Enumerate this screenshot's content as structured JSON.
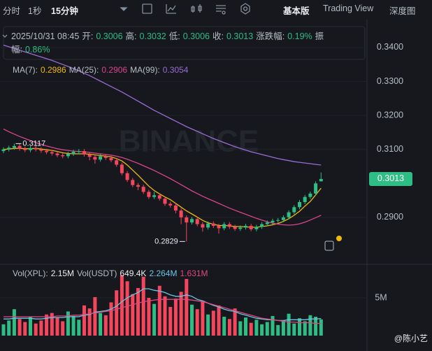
{
  "toolbar": {
    "intervals": [
      "分时",
      "1秒",
      "15分钟"
    ],
    "views": [
      "基本版",
      "Trading View",
      "深度图"
    ]
  },
  "info": {
    "time": "2025/10/31 08:45",
    "fields": [
      {
        "label": "开:",
        "value": "0.3006"
      },
      {
        "label": "高:",
        "value": "0.3032"
      },
      {
        "label": "低:",
        "value": "0.3006"
      },
      {
        "label": "收:",
        "value": "0.3013"
      },
      {
        "label": "涨跌幅:",
        "value": "0.19%"
      },
      {
        "label": "振幅:",
        "value": "0.86%"
      }
    ]
  },
  "chart_data": {
    "type": "candlestick",
    "watermark": "BINANCE",
    "colors": {
      "up": "#2ebd85",
      "down": "#f6465d"
    },
    "open": [
      0.3095,
      0.31,
      0.3105,
      0.311,
      0.3102,
      0.3098,
      0.3104,
      0.31,
      0.3096,
      0.3092,
      0.3088,
      0.3083,
      0.308,
      0.3087,
      0.3093,
      0.3095,
      0.3085,
      0.3078,
      0.307,
      0.308,
      0.3075,
      0.3068,
      0.3055,
      0.303,
      0.301,
      0.2995,
      0.299,
      0.2975,
      0.296,
      0.2965,
      0.2955,
      0.294,
      0.2935,
      0.292,
      0.29,
      0.2885,
      0.2895,
      0.288,
      0.287,
      0.2882,
      0.2875,
      0.2868,
      0.288,
      0.2872,
      0.2866,
      0.287,
      0.2875,
      0.2865,
      0.2872,
      0.288,
      0.2885,
      0.289,
      0.2892,
      0.29,
      0.2915,
      0.293,
      0.2945,
      0.296,
      0.297,
      0.3006
    ],
    "high": [
      0.3106,
      0.3111,
      0.3117,
      0.3116,
      0.3108,
      0.311,
      0.311,
      0.3106,
      0.3102,
      0.3098,
      0.3094,
      0.3089,
      0.3093,
      0.3099,
      0.3101,
      0.3101,
      0.3091,
      0.3084,
      0.3086,
      0.3086,
      0.3081,
      0.3074,
      0.3061,
      0.3036,
      0.3016,
      0.3001,
      0.2996,
      0.2981,
      0.2975,
      0.2971,
      0.2961,
      0.2946,
      0.2941,
      0.2926,
      0.2906,
      0.2901,
      0.2901,
      0.2886,
      0.2888,
      0.2888,
      0.2881,
      0.2886,
      0.2886,
      0.2878,
      0.2876,
      0.2881,
      0.2881,
      0.2878,
      0.2886,
      0.2891,
      0.2896,
      0.2898,
      0.2906,
      0.2921,
      0.2936,
      0.2951,
      0.2966,
      0.2976,
      0.3006,
      0.3032
    ],
    "low": [
      0.3089,
      0.3094,
      0.3099,
      0.3096,
      0.3092,
      0.3092,
      0.3094,
      0.309,
      0.3086,
      0.3082,
      0.3077,
      0.3074,
      0.3074,
      0.3081,
      0.3087,
      0.3079,
      0.3068,
      0.3058,
      0.3064,
      0.3069,
      0.3062,
      0.3049,
      0.3024,
      0.3004,
      0.2989,
      0.298,
      0.2969,
      0.2954,
      0.2954,
      0.2949,
      0.2934,
      0.2929,
      0.2912,
      0.288,
      0.2829,
      0.2879,
      0.2874,
      0.2858,
      0.2864,
      0.2869,
      0.2852,
      0.2862,
      0.2866,
      0.286,
      0.286,
      0.2864,
      0.2859,
      0.2859,
      0.2866,
      0.2874,
      0.2879,
      0.2884,
      0.2886,
      0.2894,
      0.2909,
      0.2924,
      0.2939,
      0.2954,
      0.2964,
      0.3006
    ],
    "close": [
      0.31,
      0.3105,
      0.311,
      0.3102,
      0.3098,
      0.3104,
      0.31,
      0.3096,
      0.3092,
      0.3088,
      0.3083,
      0.308,
      0.3087,
      0.3093,
      0.3095,
      0.3085,
      0.3078,
      0.307,
      0.308,
      0.3075,
      0.3068,
      0.3055,
      0.303,
      0.301,
      0.2995,
      0.299,
      0.2975,
      0.296,
      0.2965,
      0.2955,
      0.294,
      0.2935,
      0.292,
      0.29,
      0.2885,
      0.2895,
      0.288,
      0.287,
      0.2882,
      0.2875,
      0.2868,
      0.288,
      0.2872,
      0.2866,
      0.287,
      0.2875,
      0.2865,
      0.2872,
      0.288,
      0.2885,
      0.289,
      0.2892,
      0.29,
      0.2915,
      0.293,
      0.2945,
      0.296,
      0.297,
      0.3,
      0.3013
    ],
    "ylim": [
      0.2768,
      0.3478
    ],
    "yticks": [
      {
        "value": 0.34,
        "label": "0.3400"
      },
      {
        "value": 0.33,
        "label": "0.3300"
      },
      {
        "value": 0.32,
        "label": "0.3200"
      },
      {
        "value": 0.31,
        "label": "0.3100"
      },
      {
        "value": 0.29,
        "label": "0.2900"
      }
    ],
    "grid": true,
    "last_price_label": "0.3013",
    "annotations": [
      {
        "label": "0.3117"
      },
      {
        "label": "0.2829"
      }
    ],
    "ma": [
      {
        "name": "MA(7):",
        "value_label": "0.2986",
        "color": "#f0b90b",
        "values": [
          0.31,
          0.3101,
          0.3103,
          0.3103,
          0.3102,
          0.3102,
          0.3103,
          0.3101,
          0.3099,
          0.3097,
          0.3094,
          0.309,
          0.3088,
          0.3087,
          0.3087,
          0.3087,
          0.3086,
          0.3084,
          0.3082,
          0.308,
          0.3078,
          0.3073,
          0.3066,
          0.3054,
          0.3039,
          0.3024,
          0.3008,
          0.2992,
          0.2979,
          0.2969,
          0.296,
          0.2952,
          0.2941,
          0.293,
          0.2919,
          0.291,
          0.2901,
          0.2891,
          0.2884,
          0.288,
          0.2876,
          0.2876,
          0.2875,
          0.2873,
          0.2873,
          0.2872,
          0.2871,
          0.2871,
          0.2873,
          0.2875,
          0.2878,
          0.2882,
          0.2888,
          0.2896,
          0.2906,
          0.2918,
          0.2933,
          0.2947,
          0.2966,
          0.2986
        ]
      },
      {
        "name": "MA(25):",
        "value_label": "0.2906",
        "color": "#d9448f",
        "values": [
          0.316,
          0.3152,
          0.3145,
          0.3138,
          0.3132,
          0.3126,
          0.312,
          0.3115,
          0.311,
          0.3106,
          0.3102,
          0.3099,
          0.3097,
          0.3095,
          0.3094,
          0.3093,
          0.3091,
          0.3089,
          0.3087,
          0.3085,
          0.3083,
          0.308,
          0.3076,
          0.3071,
          0.3065,
          0.3059,
          0.3052,
          0.3045,
          0.3038,
          0.303,
          0.3022,
          0.3014,
          0.3005,
          0.2996,
          0.2987,
          0.2978,
          0.297,
          0.2962,
          0.2955,
          0.2948,
          0.2941,
          0.2934,
          0.2927,
          0.2921,
          0.2915,
          0.2909,
          0.2903,
          0.2897,
          0.2892,
          0.2887,
          0.2883,
          0.288,
          0.2878,
          0.2877,
          0.2878,
          0.2881,
          0.2886,
          0.2892,
          0.2899,
          0.2906
        ]
      },
      {
        "name": "MA(99):",
        "value_label": "0.3054",
        "color": "#9b6bd6",
        "values": [
          0.3407,
          0.3402,
          0.3397,
          0.3392,
          0.3387,
          0.3382,
          0.3377,
          0.3372,
          0.3367,
          0.3362,
          0.3356,
          0.335,
          0.3344,
          0.3338,
          0.3331,
          0.3324,
          0.3317,
          0.3309,
          0.3301,
          0.3293,
          0.3285,
          0.3277,
          0.3269,
          0.326,
          0.3251,
          0.3242,
          0.3233,
          0.3224,
          0.3215,
          0.3207,
          0.3199,
          0.3191,
          0.3183,
          0.3175,
          0.3167,
          0.316,
          0.3153,
          0.3146,
          0.3139,
          0.3132,
          0.3126,
          0.312,
          0.3114,
          0.3108,
          0.3103,
          0.3098,
          0.3093,
          0.3089,
          0.3085,
          0.3081,
          0.3077,
          0.3073,
          0.307,
          0.3067,
          0.3064,
          0.3062,
          0.306,
          0.3058,
          0.3056,
          0.3054
        ]
      }
    ],
    "volume": {
      "legend": [
        {
          "label": "Vol(XPL):",
          "value": "2.15M"
        },
        {
          "label": "Vol(USDT)",
          "value": "649.4K"
        }
      ],
      "values": [
        1.5,
        2.0,
        3.5,
        2.2,
        1.8,
        2.5,
        1.6,
        2.0,
        2.8,
        3.0,
        2.4,
        1.9,
        3.2,
        2.6,
        2.1,
        4.0,
        3.6,
        5.1,
        3.0,
        2.7,
        4.4,
        6.0,
        8.0,
        7.2,
        5.5,
        6.3,
        7.8,
        5.0,
        4.2,
        6.6,
        5.2,
        3.8,
        4.9,
        5.8,
        7.5,
        4.1,
        3.5,
        4.6,
        2.8,
        3.3,
        4.0,
        2.5,
        2.2,
        3.6,
        1.9,
        2.4,
        1.7,
        2.1,
        1.5,
        1.8,
        2.6,
        1.4,
        2.0,
        2.9,
        1.6,
        2.3,
        1.9,
        2.7,
        2.5,
        2.15
      ],
      "ylim": [
        0,
        9.26
      ],
      "yticks": [
        {
          "value": 5,
          "label": "5M"
        }
      ],
      "ma": [
        {
          "value_label": "2.264M",
          "color": "#6cc5e4",
          "values": [
            2.2,
            2.2,
            2.3,
            2.3,
            2.3,
            2.3,
            2.2,
            2.2,
            2.3,
            2.4,
            2.4,
            2.4,
            2.5,
            2.5,
            2.5,
            2.7,
            2.8,
            3.1,
            3.2,
            3.3,
            3.5,
            3.9,
            4.5,
            5.0,
            5.4,
            5.7,
            6.2,
            6.2,
            6.0,
            5.9,
            5.7,
            5.4,
            5.2,
            5.2,
            5.4,
            5.2,
            4.8,
            4.6,
            4.3,
            4.0,
            3.8,
            3.5,
            3.3,
            3.2,
            2.9,
            2.7,
            2.5,
            2.3,
            2.2,
            2.1,
            2.1,
            2.0,
            2.0,
            2.1,
            2.1,
            2.1,
            2.1,
            2.2,
            2.2,
            2.264
          ]
        },
        {
          "value_label": "1.631M",
          "color": "#e0477f",
          "values": [
            2.5,
            2.5,
            2.5,
            2.5,
            2.5,
            2.5,
            2.5,
            2.5,
            2.5,
            2.5,
            2.6,
            2.6,
            2.6,
            2.7,
            2.7,
            2.8,
            2.9,
            3.0,
            3.1,
            3.2,
            3.3,
            3.5,
            3.7,
            3.9,
            4.1,
            4.3,
            4.5,
            4.6,
            4.7,
            4.8,
            4.8,
            4.8,
            4.8,
            4.8,
            4.8,
            4.7,
            4.6,
            4.5,
            4.3,
            4.1,
            3.9,
            3.7,
            3.5,
            3.3,
            3.1,
            2.9,
            2.7,
            2.5,
            2.3,
            2.2,
            2.1,
            2.0,
            1.9,
            1.8,
            1.8,
            1.7,
            1.7,
            1.7,
            1.6,
            1.631
          ]
        }
      ]
    }
  },
  "footer_watermark": "@陈小艺"
}
